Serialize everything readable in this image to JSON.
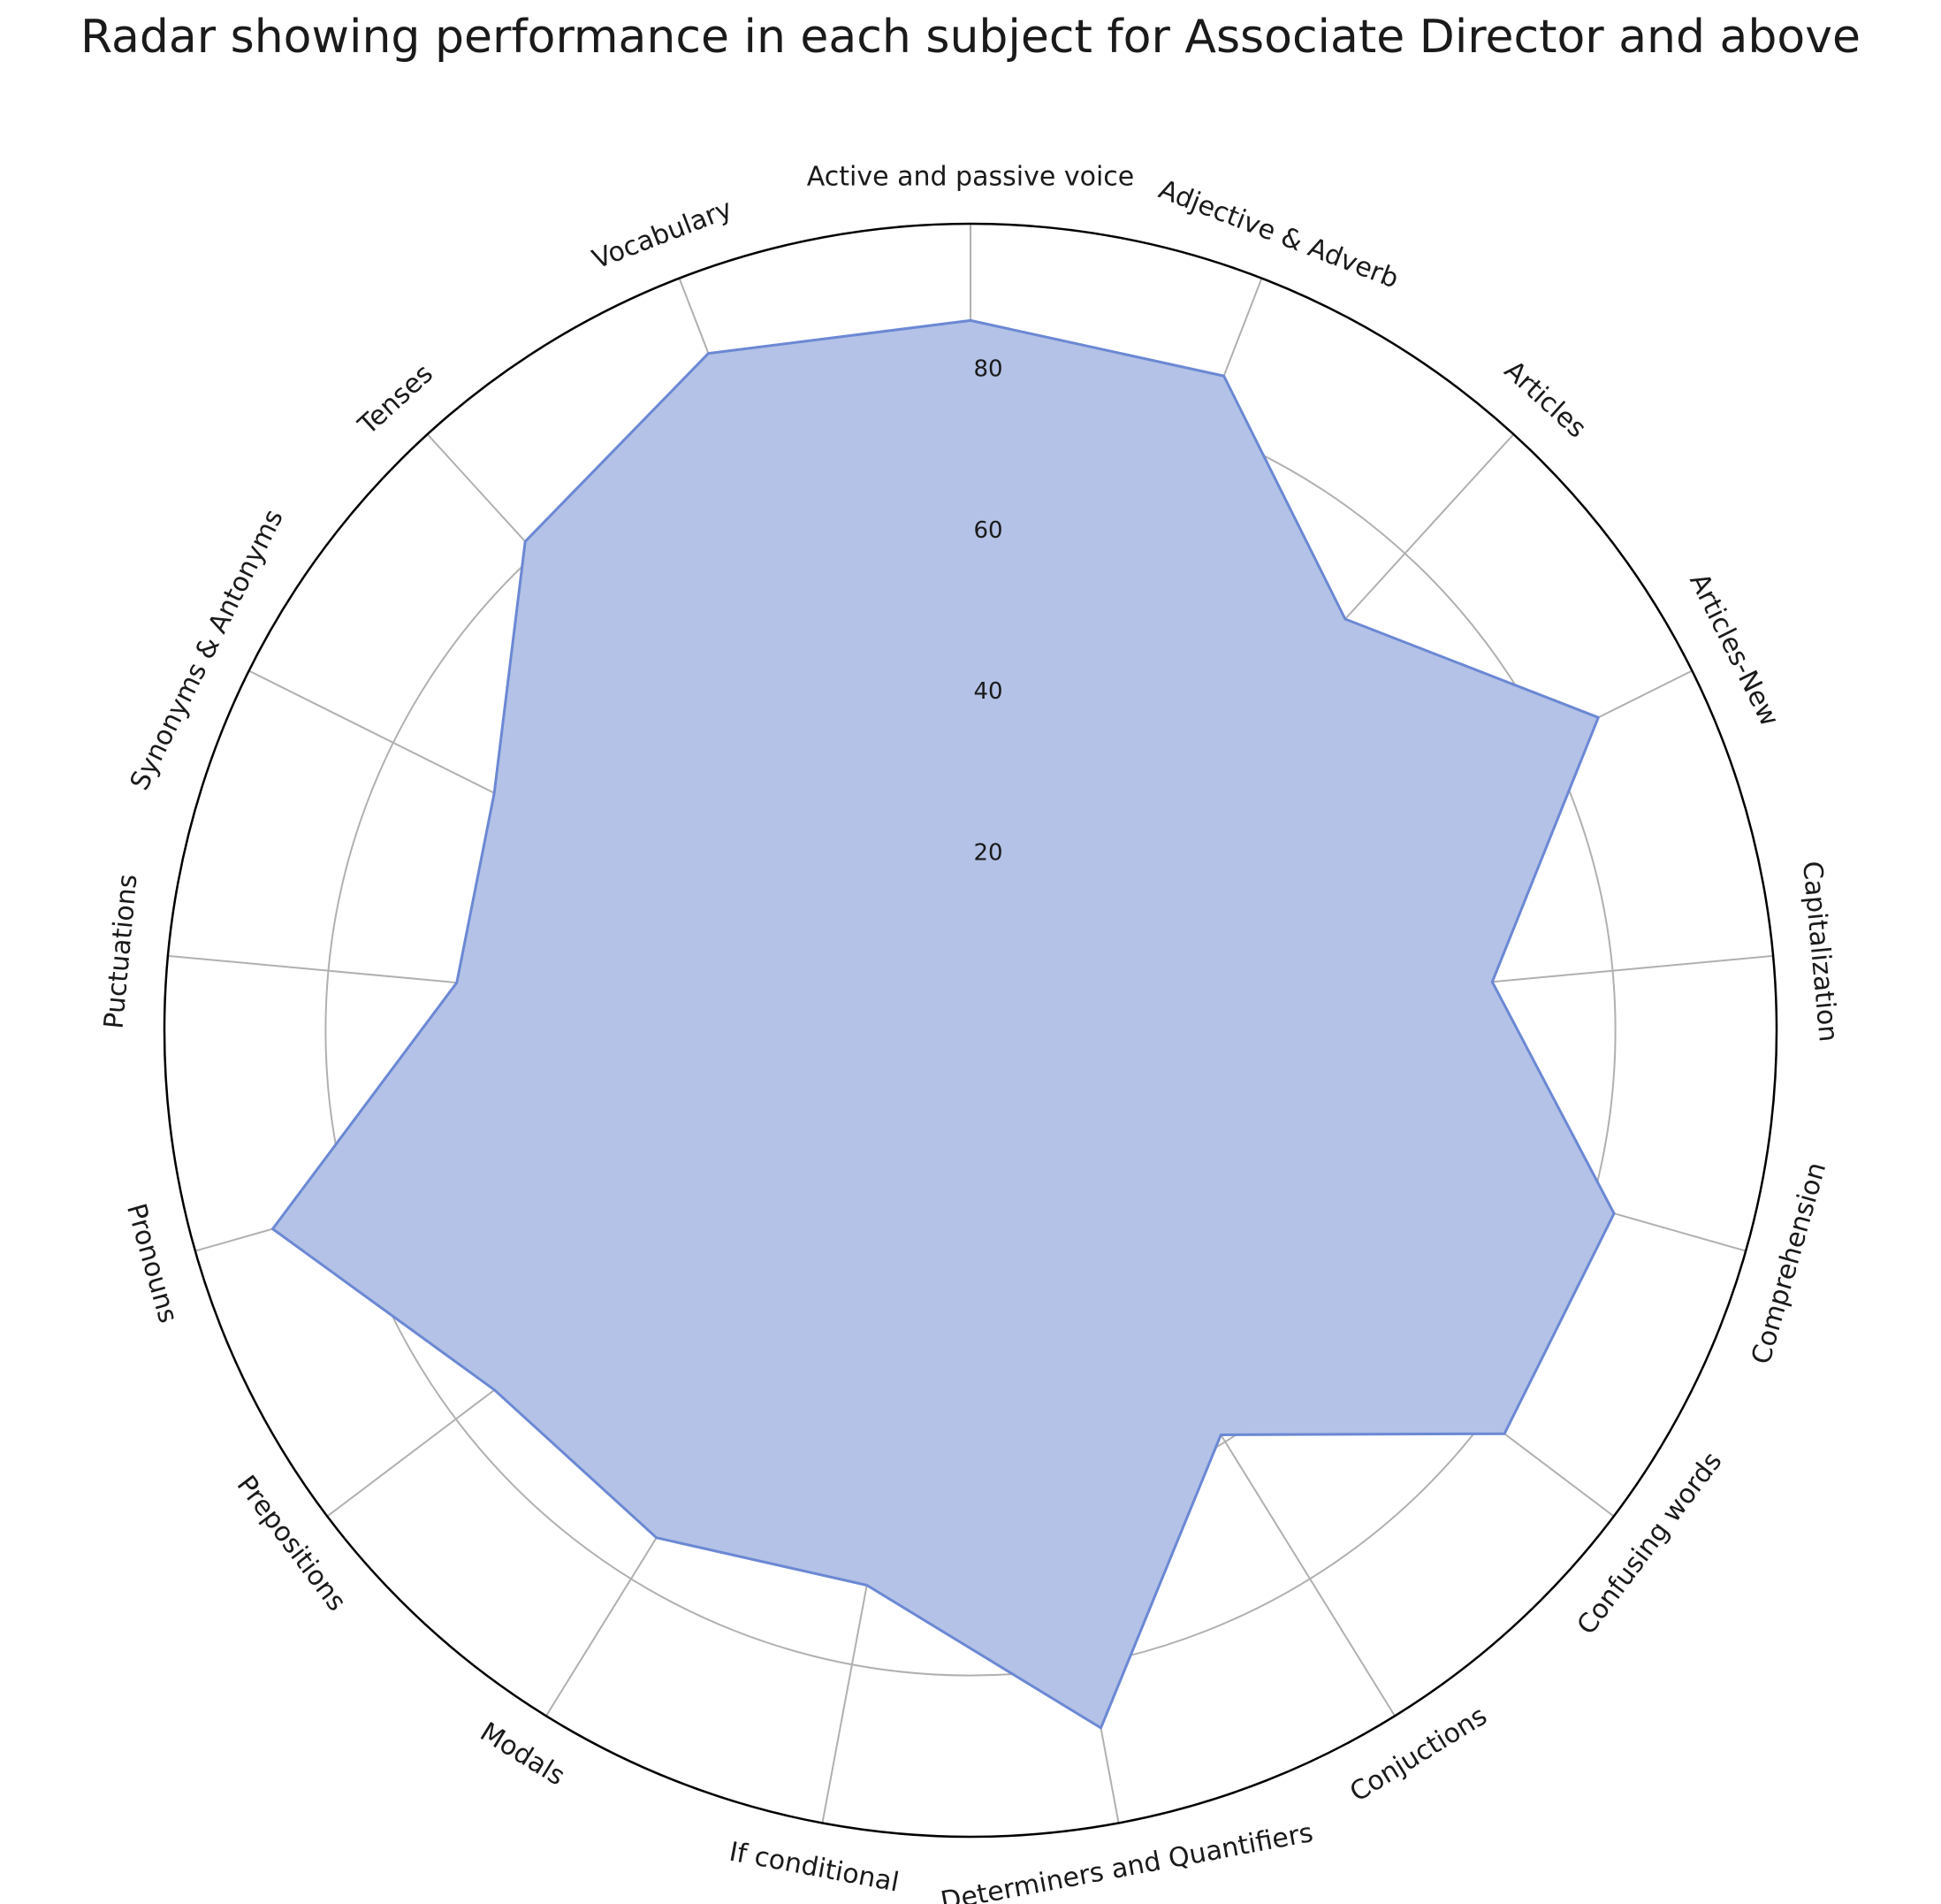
{
  "chart_data": {
    "type": "radar",
    "title": "Radar showing performance in each subject for Associate Director and above",
    "categories": [
      "Active and passive voice",
      "Adjective & Adverb",
      "Articles",
      "Articles-New",
      "Capitalization",
      "Comprehension",
      "Confusing words",
      "Conjuctions",
      "Determiners and Quantifiers",
      "If conditional",
      "Modals",
      "Prepositions",
      "Pronouns",
      "Puctuations",
      "Synonyms & Antonyms",
      "Tenses",
      "Vocabulary"
    ],
    "values": [
      88,
      87,
      69,
      87,
      65,
      83,
      83,
      59,
      88,
      70,
      74,
      74,
      90,
      64,
      66,
      82,
      90
    ],
    "rlim": [
      0,
      100
    ],
    "rticks": [
      20,
      40,
      60,
      80
    ],
    "fill_color": "#b3c2e6",
    "line_color": "#6b88d4",
    "grid_color": "#b0b0b0",
    "grid": true
  }
}
